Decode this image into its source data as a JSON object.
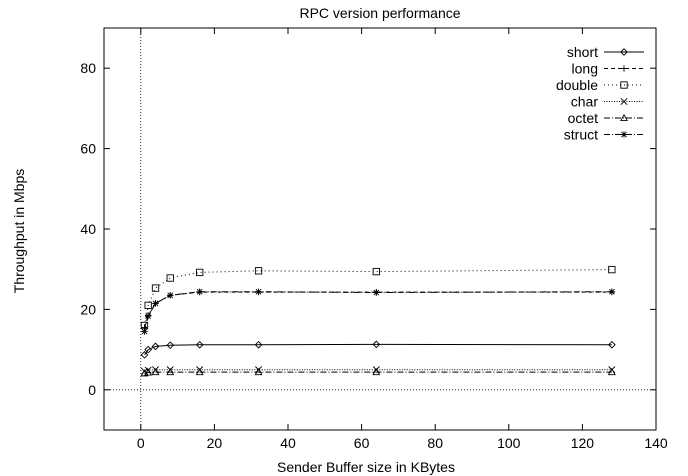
{
  "chart_data": {
    "type": "line",
    "title": "RPC version performance",
    "xlabel": "Sender Buffer size in KBytes",
    "ylabel": "Throughput in Mbps",
    "xlim": [
      -10,
      140
    ],
    "ylim": [
      -10,
      90
    ],
    "xticks": [
      0,
      20,
      40,
      60,
      80,
      100,
      120,
      140
    ],
    "yticks": [
      0,
      20,
      40,
      60,
      80
    ],
    "zero_axes": true,
    "grid": false,
    "legend_position": "top-right",
    "x": [
      1,
      2,
      4,
      8,
      16,
      32,
      64,
      128
    ],
    "series": [
      {
        "name": "short",
        "marker": "diamond",
        "dash": "solid",
        "values": [
          8.7,
          10,
          10.8,
          11.1,
          11.2,
          11.2,
          11.3,
          11.2
        ]
      },
      {
        "name": "long",
        "marker": "plus",
        "dash": "dashed",
        "values": [
          15.5,
          18.5,
          21.5,
          23.5,
          24.3,
          24.3,
          24.3,
          24.3
        ]
      },
      {
        "name": "double",
        "marker": "square",
        "dash": "dotted",
        "values": [
          16,
          21,
          25.3,
          27.8,
          29.2,
          29.6,
          29.4,
          29.9
        ]
      },
      {
        "name": "char",
        "marker": "cross",
        "dash": "dense-dotted",
        "values": [
          4.6,
          4.9,
          5.0,
          5.0,
          5.0,
          5.0,
          5.0,
          5.0
        ]
      },
      {
        "name": "octet",
        "marker": "triangle",
        "dash": "dash-dot",
        "values": [
          4.1,
          4.3,
          4.4,
          4.4,
          4.4,
          4.4,
          4.4,
          4.4
        ]
      },
      {
        "name": "struct",
        "marker": "star",
        "dash": "dash-dot",
        "values": [
          14.5,
          18.3,
          21.5,
          23.5,
          24.4,
          24.4,
          24.2,
          24.4
        ]
      }
    ]
  }
}
